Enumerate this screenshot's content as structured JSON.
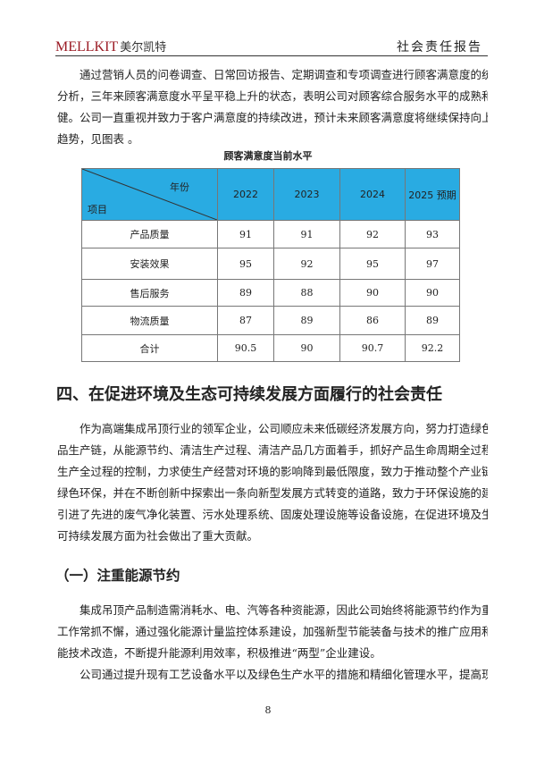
{
  "header": {
    "brand_en": "MELLKIT",
    "brand_cn": "美尔凯特",
    "report_title": "社会责任报告"
  },
  "intro": {
    "lines": [
      "通过营销人员的问卷调查、日常回访报告、定期调查和专项调查进行顾客满意度的统计",
      "分析，三年来顾客满意度水平呈平稳上升的状态，表明公司对顾客综合服务水平的成熟和稳",
      "健。公司一直重视并致力于客户满意度的持续改进，预计未来顾客满意度将继续保持向上的",
      "趋势，见图表 。"
    ]
  },
  "table": {
    "caption": "顾客满意度当前水平",
    "corner_top": "年份",
    "corner_bottom": "项目",
    "columns": [
      "2022",
      "2023",
      "2024",
      "2025 预期"
    ],
    "rows": [
      {
        "label": "产品质量",
        "values": [
          "91",
          "91",
          "92",
          "93"
        ]
      },
      {
        "label": "安装效果",
        "values": [
          "95",
          "92",
          "95",
          "97"
        ]
      },
      {
        "label": "售后服务",
        "values": [
          "89",
          "88",
          "90",
          "90"
        ]
      },
      {
        "label": "物流质量",
        "values": [
          "87",
          "89",
          "86",
          "89"
        ]
      },
      {
        "label": "合计",
        "values": [
          "90.5",
          "90",
          "90.7",
          "92.2"
        ]
      }
    ]
  },
  "section4": {
    "title": "四、在促进环境及生态可持续发展方面履行的社会责任",
    "lines": [
      "作为高端集成吊顶行业的领军企业，公司顺应未来低碳经济发展方向，努力打造绿色产",
      "品生产链，从能源节约、清洁生产过程、清洁产品几方面着手，抓好产品生命周期全过程和",
      "生产全过程的控制，力求使生产经营对环境的影响降到最低限度，致力于推动整个产业链的",
      "绿色环保，并在不断创新中探索出一条向新型发展方式转变的道路，致力于环保设施的建设，",
      "引进了先进的废气净化装置、污水处理系统、固废处理设施等设备设施，在促进环境及生态",
      "可持续发展方面为社会做出了重大贡献。"
    ]
  },
  "subsection1": {
    "title": "（一）注重能源节约",
    "para1": [
      "集成吊顶产品制造需消耗水、电、汽等各种资能源，因此公司始终将能源节约作为重点",
      "工作常抓不懈，通过强化能源计量监控体系建设，加强新型节能装备与技术的推广应用和节",
      "能技术改造，不断提升能源利用效率，积极推进“两型”企业建设。"
    ],
    "para2": [
      "公司通过提升现有工艺设备水平以及绿色生产水平的措施和精细化管理水平，提高现有"
    ]
  },
  "footer": {
    "page_number": "8"
  }
}
